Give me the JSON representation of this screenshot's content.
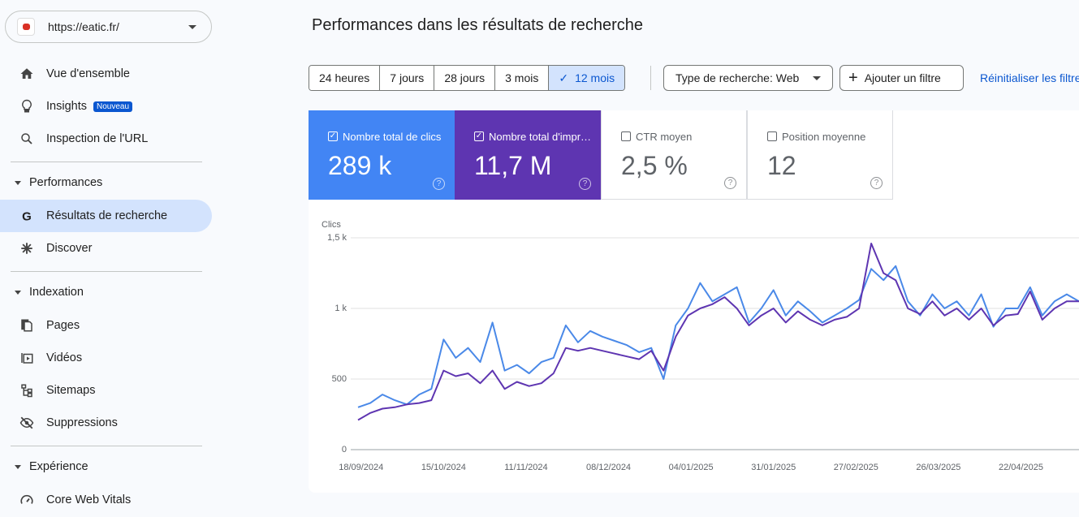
{
  "site_selector": {
    "url": "https://eatic.fr/"
  },
  "nav": {
    "top": [
      {
        "label": "Vue d'ensemble"
      },
      {
        "label": "Insights",
        "badge": "Nouveau"
      },
      {
        "label": "Inspection de l'URL"
      }
    ],
    "sections": [
      {
        "title": "Performances",
        "items": [
          "Résultats de recherche",
          "Discover"
        ]
      },
      {
        "title": "Indexation",
        "items": [
          "Pages",
          "Vidéos",
          "Sitemaps",
          "Suppressions"
        ]
      },
      {
        "title": "Expérience",
        "items": [
          "Core Web Vitals"
        ]
      }
    ]
  },
  "header": {
    "title": "Performances dans les résultats de recherche"
  },
  "filters": {
    "date_ranges": [
      "24 heures",
      "7 jours",
      "28 jours",
      "3 mois",
      "12 mois"
    ],
    "search_type": "Type de recherche: Web",
    "add_filter": "Ajouter un filtre",
    "reset": "Réinitialiser les filtres"
  },
  "metrics": [
    {
      "label": "Nombre total de clics",
      "value": "289 k",
      "checked": true,
      "color": "#4285f4"
    },
    {
      "label": "Nombre total d'impressions",
      "value": "11,7 M",
      "checked": true,
      "color": "#5e35b1"
    },
    {
      "label": "CTR moyen",
      "value": "2,5 %",
      "checked": false
    },
    {
      "label": "Position moyenne",
      "value": "12",
      "checked": false
    }
  ],
  "chart_data": {
    "type": "line",
    "y_label": "Clics",
    "x": [
      "17/09/2024",
      "21/09/2024",
      "25/09/2024",
      "29/09/2024",
      "03/10/2024",
      "07/10/2024",
      "11/10/2024",
      "15/10/2024",
      "19/10/2024",
      "23/10/2024",
      "27/10/2024",
      "31/10/2024",
      "04/11/2024",
      "08/11/2024",
      "12/11/2024",
      "16/11/2024",
      "20/11/2024",
      "24/11/2024",
      "28/11/2024",
      "02/12/2024",
      "06/12/2024",
      "10/12/2024",
      "14/12/2024",
      "18/12/2024",
      "22/12/2024",
      "26/12/2024",
      "30/12/2024",
      "03/01/2025",
      "07/01/2025",
      "11/01/2025",
      "15/01/2025",
      "19/01/2025",
      "23/01/2025",
      "27/01/2025",
      "31/01/2025",
      "04/02/2025",
      "08/02/2025",
      "12/02/2025",
      "16/02/2025",
      "20/02/2025",
      "24/02/2025",
      "28/02/2025",
      "04/03/2025",
      "08/03/2025",
      "12/03/2025",
      "16/03/2025",
      "20/03/2025",
      "24/03/2025",
      "28/03/2025",
      "01/04/2025",
      "05/04/2025",
      "09/04/2025",
      "13/04/2025",
      "17/04/2025",
      "21/04/2025",
      "25/04/2025",
      "29/04/2025",
      "03/05/2025",
      "07/05/2025",
      "11/05/2025"
    ],
    "series": [
      {
        "color": "#4a89e8",
        "values": [
          300,
          330,
          390,
          350,
          320,
          390,
          430,
          780,
          650,
          720,
          620,
          900,
          560,
          600,
          540,
          620,
          650,
          880,
          760,
          840,
          800,
          770,
          740,
          690,
          720,
          500,
          880,
          1000,
          1180,
          1050,
          1100,
          1150,
          900,
          1000,
          1130,
          950,
          1050,
          980,
          900,
          950,
          1000,
          1060,
          1280,
          1200,
          1300,
          1050,
          950,
          1100,
          1000,
          1050,
          950,
          1100,
          870,
          1000,
          1000,
          1150,
          950,
          1050,
          1100,
          1050
        ]
      },
      {
        "color": "#5e35b1",
        "values": [
          210,
          260,
          290,
          300,
          320,
          330,
          350,
          560,
          520,
          540,
          470,
          560,
          430,
          480,
          450,
          470,
          540,
          720,
          700,
          720,
          700,
          680,
          660,
          640,
          700,
          560,
          800,
          950,
          1000,
          1030,
          1080,
          1000,
          880,
          950,
          1000,
          900,
          980,
          920,
          880,
          920,
          940,
          1000,
          1460,
          1250,
          1200,
          1000,
          960,
          1050,
          950,
          1000,
          920,
          1000,
          880,
          950,
          960,
          1120,
          920,
          1000,
          1050,
          1050
        ]
      }
    ],
    "xlim": [
      "17/09/2024",
      "11/05/2025"
    ],
    "xticks": [
      "18/09/2024",
      "15/10/2024",
      "11/11/2024",
      "08/12/2024",
      "04/01/2025",
      "31/01/2025",
      "27/02/2025",
      "26/03/2025",
      "22/04/2025"
    ],
    "ylim": [
      0,
      1500
    ],
    "yticks": [
      0,
      500,
      {
        "value": 1000,
        "label": "1 k"
      },
      {
        "value": 1500,
        "label": "1,5 k"
      }
    ],
    "grid": true
  }
}
